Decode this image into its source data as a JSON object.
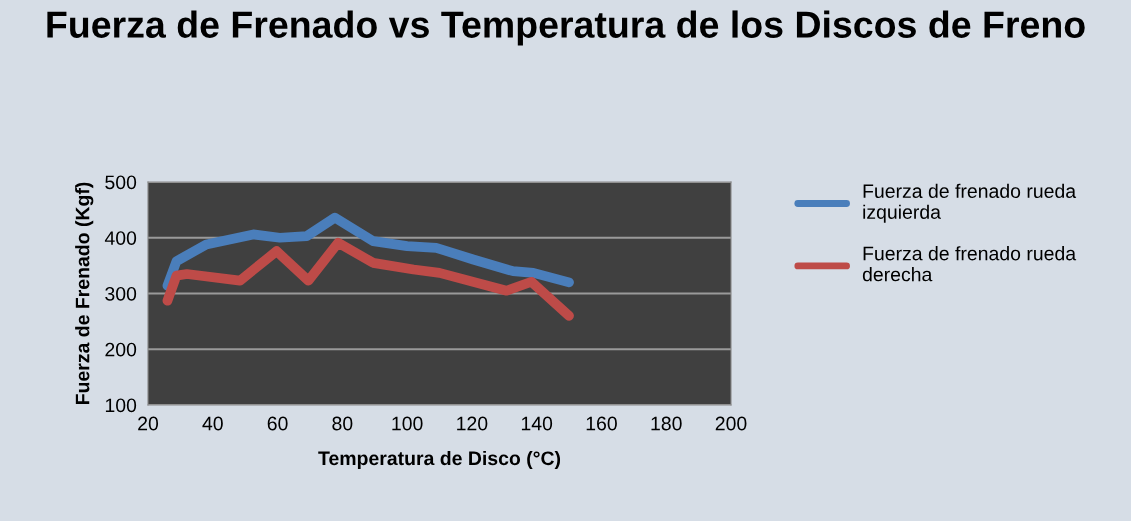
{
  "chart_data": {
    "type": "line",
    "title": "Fuerza de Frenado vs Temperatura de los Discos de Freno",
    "xlabel": "Temperatura de Disco (°C)",
    "ylabel": "Fuerza de Frenado (Kgf)",
    "series": [
      {
        "name": "Fuerza de frenado rueda izquierda",
        "color": "#4a7ebb",
        "x": [
          26,
          28.8,
          38,
          52.5,
          60.7,
          69,
          77.7,
          89.5,
          100,
          109,
          120.4,
          132.7,
          139,
          150
        ],
        "values": [
          314,
          358,
          388,
          406,
          400,
          403,
          436,
          394,
          385,
          382,
          361,
          340,
          337,
          320
        ]
      },
      {
        "name": "Fuerza de frenado rueda derecha",
        "color": "#be4b48",
        "x": [
          26,
          28.8,
          32,
          48.4,
          59.7,
          69.5,
          78.7,
          89.5,
          102,
          110,
          130.7,
          138.4,
          150
        ],
        "values": [
          287,
          332,
          335,
          323,
          376,
          323,
          391,
          355,
          343,
          337,
          305,
          321,
          260
        ]
      }
    ],
    "xlim": [
      20,
      200
    ],
    "xticks": [
      20,
      40,
      60,
      80,
      100,
      120,
      140,
      160,
      180,
      200
    ],
    "ylim": [
      100,
      500
    ],
    "yticks": [
      100,
      200,
      300,
      400,
      500
    ],
    "grid": "y",
    "legend": "right",
    "marker": "none",
    "line_style": "solid"
  }
}
